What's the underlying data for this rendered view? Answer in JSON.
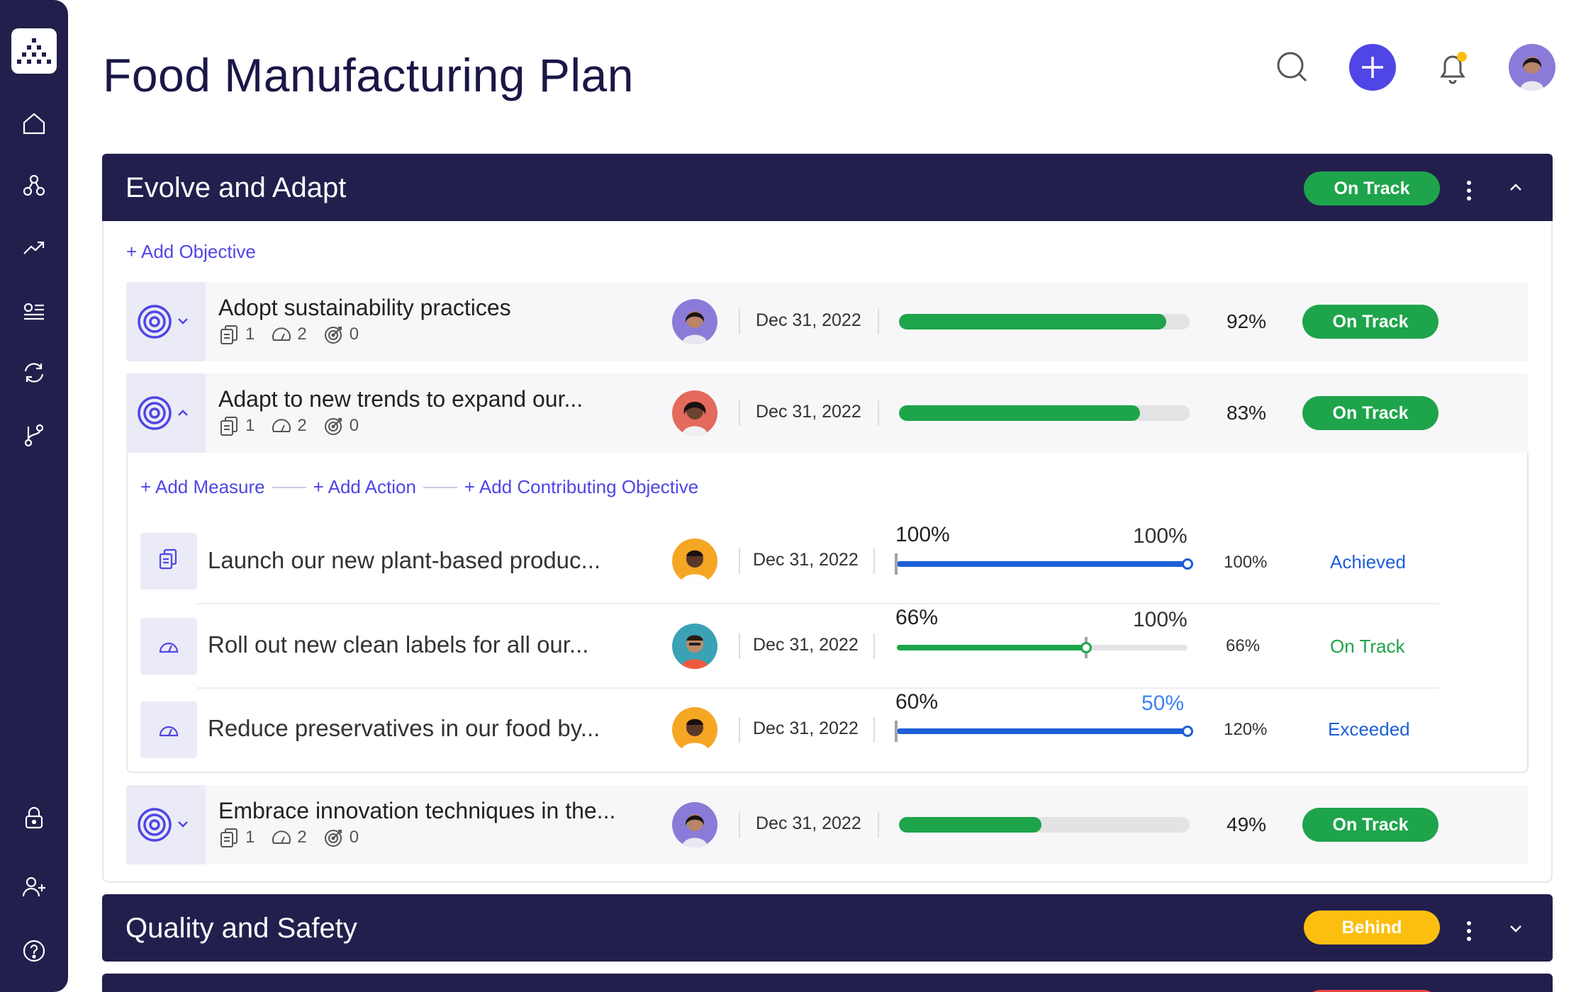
{
  "page": {
    "title": "Food Manufacturing Plan"
  },
  "sidebar": {
    "items": [
      {
        "name": "home-icon"
      },
      {
        "name": "hierarchy-icon"
      },
      {
        "name": "trend-icon"
      },
      {
        "name": "list-icon"
      },
      {
        "name": "sync-icon"
      },
      {
        "name": "branch-icon"
      },
      {
        "name": "lock-icon"
      },
      {
        "name": "add-user-icon"
      },
      {
        "name": "help-icon"
      }
    ]
  },
  "header": {
    "icons": [
      "search-icon",
      "plus-icon",
      "bell-icon",
      "avatar"
    ]
  },
  "colors": {
    "navy": "#221f4d",
    "accent": "#4f46e5",
    "green": "#1ea44b",
    "yellow": "#fcbf10",
    "blue": "#1d5fd6"
  },
  "sections": [
    {
      "title": "Evolve and Adapt",
      "status": "On Track",
      "add_objective": "+ Add Objective",
      "objectives": [
        {
          "title": "Adopt sustainability practices",
          "measures": "1",
          "actions": "2",
          "objectives": "0",
          "date": "Dec 31, 2022",
          "progress": 92,
          "progress_label": "92%",
          "status": "On Track"
        },
        {
          "title": "Adapt to new trends to expand our...",
          "measures": "1",
          "actions": "2",
          "objectives": "0",
          "date": "Dec 31, 2022",
          "progress": 83,
          "progress_label": "83%",
          "status": "On Track"
        },
        {
          "title": "Embrace innovation techniques in the...",
          "measures": "1",
          "actions": "2",
          "objectives": "0",
          "date": "Dec 31, 2022",
          "progress": 49,
          "progress_label": "49%",
          "status": "On Track"
        }
      ],
      "sublinks": {
        "add_measure": "+ Add Measure",
        "add_action": "+ Add Action",
        "add_contributing": "+ Add Contributing Objective"
      },
      "subitems": [
        {
          "title": "Launch our new plant-based produc...",
          "date": "Dec 31, 2022",
          "current_label": "100%",
          "target_label": "100%",
          "pct": "100%",
          "status": "Achieved",
          "progress": 100
        },
        {
          "title": "Roll out new clean labels for all our...",
          "date": "Dec 31, 2022",
          "current_label": "66%",
          "target_label": "100%",
          "pct": "66%",
          "status": "On Track",
          "progress": 66
        },
        {
          "title": "Reduce preservatives in our food by...",
          "date": "Dec 31, 2022",
          "current_label": "60%",
          "target_label": "50%",
          "pct": "120%",
          "status": "Exceeded",
          "progress": 100
        }
      ]
    },
    {
      "title": "Quality and Safety",
      "status": "Behind"
    }
  ]
}
